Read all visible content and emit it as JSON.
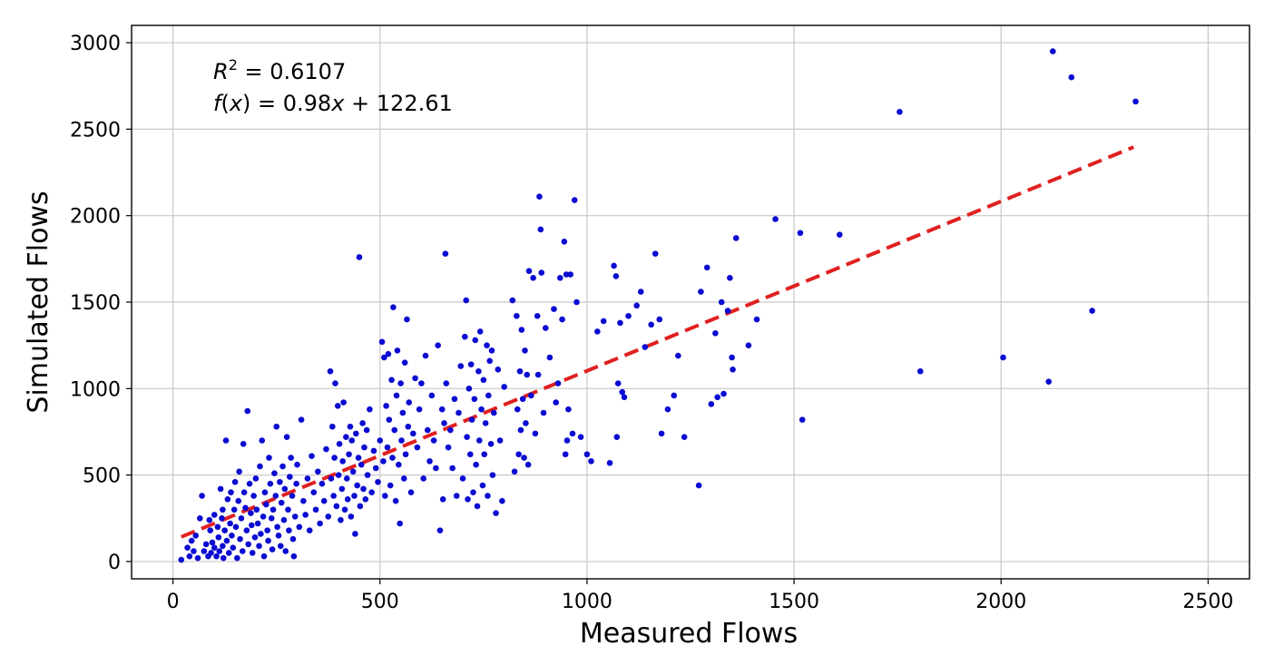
{
  "chart_data": {
    "type": "scatter",
    "title": "",
    "xlabel": "Measured Flows",
    "ylabel": "Simulated Flows",
    "xlim": [
      -100,
      2600
    ],
    "ylim": [
      -100,
      3100
    ],
    "xticks": [
      0,
      500,
      1000,
      1500,
      2000,
      2500
    ],
    "yticks": [
      0,
      500,
      1000,
      1500,
      2000,
      2500,
      3000
    ],
    "xtick_labels": [
      "0",
      "500",
      "1000",
      "1500",
      "2000",
      "2500"
    ],
    "ytick_labels": [
      "0",
      "500",
      "1000",
      "1500",
      "2000",
      "2500",
      "3000"
    ],
    "grid": true,
    "annotations": {
      "r2_prefix": "R",
      "r2_exponent": "2",
      "r2_rest": " = 0.6107",
      "fx_func": "f",
      "fx_open": "(",
      "fx_var1": "x",
      "fx_middle": ") = 0.98",
      "fx_var2": "x",
      "fx_end": " + 122.61"
    },
    "fit_line": {
      "slope": 0.98,
      "intercept": 122.61,
      "x_start": 20,
      "x_end": 2320,
      "color": "#e02020",
      "style": "dashed"
    },
    "point_color": "#0a0ad2",
    "points": [
      [
        20,
        10
      ],
      [
        35,
        80
      ],
      [
        40,
        30
      ],
      [
        45,
        120
      ],
      [
        50,
        60
      ],
      [
        55,
        150
      ],
      [
        60,
        20
      ],
      [
        65,
        250
      ],
      [
        70,
        380
      ],
      [
        75,
        60
      ],
      [
        80,
        100
      ],
      [
        85,
        30
      ],
      [
        88,
        240
      ],
      [
        90,
        180
      ],
      [
        92,
        50
      ],
      [
        95,
        110
      ],
      [
        100,
        270
      ],
      [
        100,
        80
      ],
      [
        105,
        30
      ],
      [
        108,
        200
      ],
      [
        110,
        140
      ],
      [
        112,
        60
      ],
      [
        115,
        420
      ],
      [
        118,
        250
      ],
      [
        120,
        300
      ],
      [
        120,
        90
      ],
      [
        122,
        20
      ],
      [
        125,
        180
      ],
      [
        128,
        700
      ],
      [
        130,
        120
      ],
      [
        132,
        360
      ],
      [
        135,
        50
      ],
      [
        138,
        220
      ],
      [
        140,
        400
      ],
      [
        142,
        150
      ],
      [
        145,
        80
      ],
      [
        148,
        300
      ],
      [
        150,
        460
      ],
      [
        152,
        200
      ],
      [
        155,
        20
      ],
      [
        158,
        350
      ],
      [
        160,
        520
      ],
      [
        162,
        130
      ],
      [
        165,
        250
      ],
      [
        168,
        60
      ],
      [
        170,
        680
      ],
      [
        172,
        400
      ],
      [
        175,
        310
      ],
      [
        178,
        180
      ],
      [
        180,
        870
      ],
      [
        182,
        100
      ],
      [
        185,
        450
      ],
      [
        188,
        280
      ],
      [
        190,
        210
      ],
      [
        192,
        50
      ],
      [
        195,
        380
      ],
      [
        198,
        140
      ],
      [
        200,
        480
      ],
      [
        202,
        300
      ],
      [
        205,
        220
      ],
      [
        208,
        90
      ],
      [
        210,
        550
      ],
      [
        212,
        160
      ],
      [
        215,
        700
      ],
      [
        218,
        260
      ],
      [
        220,
        30
      ],
      [
        222,
        400
      ],
      [
        225,
        330
      ],
      [
        228,
        180
      ],
      [
        230,
        120
      ],
      [
        232,
        600
      ],
      [
        235,
        450
      ],
      [
        238,
        250
      ],
      [
        240,
        70
      ],
      [
        242,
        300
      ],
      [
        245,
        510
      ],
      [
        248,
        380
      ],
      [
        250,
        780
      ],
      [
        252,
        200
      ],
      [
        255,
        150
      ],
      [
        258,
        460
      ],
      [
        260,
        90
      ],
      [
        262,
        340
      ],
      [
        265,
        550
      ],
      [
        268,
        240
      ],
      [
        270,
        420
      ],
      [
        272,
        60
      ],
      [
        275,
        720
      ],
      [
        278,
        300
      ],
      [
        280,
        180
      ],
      [
        282,
        490
      ],
      [
        285,
        600
      ],
      [
        288,
        380
      ],
      [
        290,
        130
      ],
      [
        292,
        30
      ],
      [
        295,
        260
      ],
      [
        298,
        450
      ],
      [
        300,
        560
      ],
      [
        305,
        200
      ],
      [
        310,
        820
      ],
      [
        315,
        350
      ],
      [
        320,
        270
      ],
      [
        325,
        480
      ],
      [
        330,
        180
      ],
      [
        335,
        610
      ],
      [
        340,
        400
      ],
      [
        345,
        300
      ],
      [
        350,
        520
      ],
      [
        355,
        220
      ],
      [
        360,
        450
      ],
      [
        365,
        350
      ],
      [
        370,
        650
      ],
      [
        375,
        260
      ],
      [
        380,
        1100
      ],
      [
        382,
        480
      ],
      [
        385,
        780
      ],
      [
        388,
        380
      ],
      [
        390,
        600
      ],
      [
        392,
        1030
      ],
      [
        395,
        320
      ],
      [
        398,
        900
      ],
      [
        400,
        500
      ],
      [
        402,
        680
      ],
      [
        405,
        240
      ],
      [
        408,
        420
      ],
      [
        410,
        580
      ],
      [
        412,
        920
      ],
      [
        415,
        300
      ],
      [
        418,
        720
      ],
      [
        420,
        480
      ],
      [
        422,
        360
      ],
      [
        425,
        620
      ],
      [
        428,
        780
      ],
      [
        430,
        260
      ],
      [
        432,
        700
      ],
      [
        435,
        520
      ],
      [
        438,
        380
      ],
      [
        440,
        160
      ],
      [
        442,
        740
      ],
      [
        445,
        440
      ],
      [
        448,
        600
      ],
      [
        450,
        1760
      ],
      [
        452,
        320
      ],
      [
        455,
        560
      ],
      [
        458,
        800
      ],
      [
        460,
        420
      ],
      [
        462,
        660
      ],
      [
        465,
        360
      ],
      [
        468,
        760
      ],
      [
        470,
        500
      ],
      [
        475,
        880
      ],
      [
        480,
        400
      ],
      [
        485,
        640
      ],
      [
        490,
        540
      ],
      [
        495,
        460
      ],
      [
        500,
        700
      ],
      [
        505,
        1270
      ],
      [
        508,
        580
      ],
      [
        510,
        1180
      ],
      [
        512,
        380
      ],
      [
        515,
        900
      ],
      [
        518,
        660
      ],
      [
        520,
        1200
      ],
      [
        522,
        820
      ],
      [
        525,
        440
      ],
      [
        528,
        1050
      ],
      [
        530,
        600
      ],
      [
        532,
        1470
      ],
      [
        535,
        760
      ],
      [
        538,
        350
      ],
      [
        540,
        960
      ],
      [
        542,
        1220
      ],
      [
        545,
        560
      ],
      [
        548,
        220
      ],
      [
        550,
        1030
      ],
      [
        552,
        700
      ],
      [
        555,
        860
      ],
      [
        558,
        480
      ],
      [
        560,
        1150
      ],
      [
        562,
        620
      ],
      [
        565,
        1400
      ],
      [
        568,
        780
      ],
      [
        570,
        920
      ],
      [
        575,
        400
      ],
      [
        580,
        740
      ],
      [
        585,
        1060
      ],
      [
        590,
        660
      ],
      [
        595,
        880
      ],
      [
        600,
        1030
      ],
      [
        605,
        480
      ],
      [
        610,
        1190
      ],
      [
        615,
        760
      ],
      [
        620,
        580
      ],
      [
        625,
        960
      ],
      [
        630,
        700
      ],
      [
        635,
        540
      ],
      [
        640,
        1250
      ],
      [
        645,
        180
      ],
      [
        650,
        880
      ],
      [
        652,
        360
      ],
      [
        655,
        800
      ],
      [
        658,
        1780
      ],
      [
        660,
        1030
      ],
      [
        665,
        660
      ],
      [
        670,
        760
      ],
      [
        675,
        540
      ],
      [
        680,
        940
      ],
      [
        685,
        380
      ],
      [
        690,
        860
      ],
      [
        695,
        1130
      ],
      [
        700,
        480
      ],
      [
        705,
        1300
      ],
      [
        708,
        1510
      ],
      [
        710,
        720
      ],
      [
        712,
        360
      ],
      [
        715,
        1000
      ],
      [
        718,
        620
      ],
      [
        720,
        1140
      ],
      [
        722,
        820
      ],
      [
        725,
        400
      ],
      [
        728,
        940
      ],
      [
        730,
        1280
      ],
      [
        732,
        560
      ],
      [
        735,
        320
      ],
      [
        738,
        1100
      ],
      [
        740,
        700
      ],
      [
        742,
        1330
      ],
      [
        745,
        880
      ],
      [
        748,
        440
      ],
      [
        750,
        1050
      ],
      [
        752,
        620
      ],
      [
        755,
        800
      ],
      [
        758,
        1250
      ],
      [
        760,
        380
      ],
      [
        762,
        960
      ],
      [
        765,
        1160
      ],
      [
        768,
        680
      ],
      [
        770,
        1220
      ],
      [
        772,
        500
      ],
      [
        775,
        860
      ],
      [
        780,
        280
      ],
      [
        785,
        1110
      ],
      [
        790,
        700
      ],
      [
        795,
        350
      ],
      [
        800,
        1010
      ],
      [
        820,
        1510
      ],
      [
        825,
        520
      ],
      [
        830,
        1420
      ],
      [
        832,
        880
      ],
      [
        835,
        620
      ],
      [
        838,
        1100
      ],
      [
        840,
        760
      ],
      [
        842,
        1340
      ],
      [
        845,
        940
      ],
      [
        848,
        600
      ],
      [
        850,
        1220
      ],
      [
        852,
        800
      ],
      [
        855,
        1080
      ],
      [
        858,
        560
      ],
      [
        860,
        1680
      ],
      [
        865,
        960
      ],
      [
        870,
        1640
      ],
      [
        875,
        740
      ],
      [
        880,
        1420
      ],
      [
        882,
        1080
      ],
      [
        885,
        2110
      ],
      [
        888,
        1920
      ],
      [
        890,
        1670
      ],
      [
        895,
        860
      ],
      [
        900,
        1350
      ],
      [
        910,
        1180
      ],
      [
        920,
        1460
      ],
      [
        925,
        920
      ],
      [
        930,
        1030
      ],
      [
        935,
        1640
      ],
      [
        940,
        1400
      ],
      [
        945,
        1850
      ],
      [
        948,
        620
      ],
      [
        950,
        1660
      ],
      [
        952,
        700
      ],
      [
        955,
        880
      ],
      [
        960,
        1660
      ],
      [
        965,
        740
      ],
      [
        970,
        2090
      ],
      [
        975,
        1500
      ],
      [
        985,
        720
      ],
      [
        1000,
        620
      ],
      [
        1010,
        580
      ],
      [
        1025,
        1330
      ],
      [
        1040,
        1390
      ],
      [
        1055,
        570
      ],
      [
        1065,
        1710
      ],
      [
        1070,
        1650
      ],
      [
        1072,
        720
      ],
      [
        1075,
        1030
      ],
      [
        1080,
        1380
      ],
      [
        1085,
        980
      ],
      [
        1090,
        950
      ],
      [
        1100,
        1420
      ],
      [
        1120,
        1480
      ],
      [
        1130,
        1560
      ],
      [
        1140,
        1240
      ],
      [
        1155,
        1370
      ],
      [
        1165,
        1780
      ],
      [
        1175,
        1400
      ],
      [
        1180,
        740
      ],
      [
        1195,
        880
      ],
      [
        1210,
        960
      ],
      [
        1220,
        1190
      ],
      [
        1235,
        720
      ],
      [
        1270,
        440
      ],
      [
        1275,
        1560
      ],
      [
        1290,
        1700
      ],
      [
        1300,
        910
      ],
      [
        1310,
        1320
      ],
      [
        1315,
        950
      ],
      [
        1325,
        1500
      ],
      [
        1330,
        970
      ],
      [
        1340,
        1450
      ],
      [
        1345,
        1640
      ],
      [
        1350,
        1180
      ],
      [
        1352,
        1110
      ],
      [
        1360,
        1870
      ],
      [
        1390,
        1250
      ],
      [
        1410,
        1400
      ],
      [
        1455,
        1980
      ],
      [
        1515,
        1900
      ],
      [
        1520,
        820
      ],
      [
        1610,
        1890
      ],
      [
        1755,
        2600
      ],
      [
        1805,
        1100
      ],
      [
        2005,
        1180
      ],
      [
        2115,
        1040
      ],
      [
        2125,
        2950
      ],
      [
        2170,
        2800
      ],
      [
        2220,
        1450
      ],
      [
        2325,
        2660
      ]
    ]
  }
}
